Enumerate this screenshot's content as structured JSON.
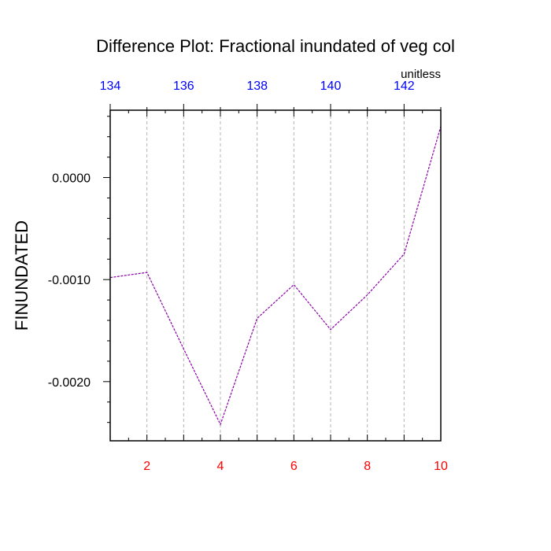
{
  "chart_data": {
    "type": "line",
    "title": "Difference Plot: Fractional inundated of veg col",
    "units_label": "unitless",
    "ylabel": "FINUNDATED",
    "xlabel": "",
    "x": [
      1,
      2,
      3,
      4,
      5,
      6,
      7,
      8,
      9,
      10
    ],
    "series": [
      {
        "values": [
          -0.00098,
          -0.00093,
          -0.00168,
          -0.00242,
          -0.00138,
          -0.00105,
          -0.00149,
          -0.00115,
          -0.00075,
          0.0005
        ]
      }
    ],
    "xlim": [
      1,
      10
    ],
    "ylim": [
      -0.00258,
      0.00066
    ],
    "x_ticks_bottom": [
      2,
      4,
      6,
      8,
      10
    ],
    "x_ticks_top": [
      134,
      136,
      138,
      140,
      142
    ],
    "x_top_range": [
      134,
      143
    ],
    "y_ticks": [
      0.0,
      -0.001,
      -0.002
    ],
    "y_tick_labels": [
      "0.0000",
      "-0.0010",
      "-0.0020"
    ],
    "grid": "vertical dashed",
    "colors": {
      "line": "#8b00a8",
      "bottom_ticks": "#ff0000",
      "top_ticks": "#0000ff",
      "grid": "#b4b4b4"
    }
  }
}
